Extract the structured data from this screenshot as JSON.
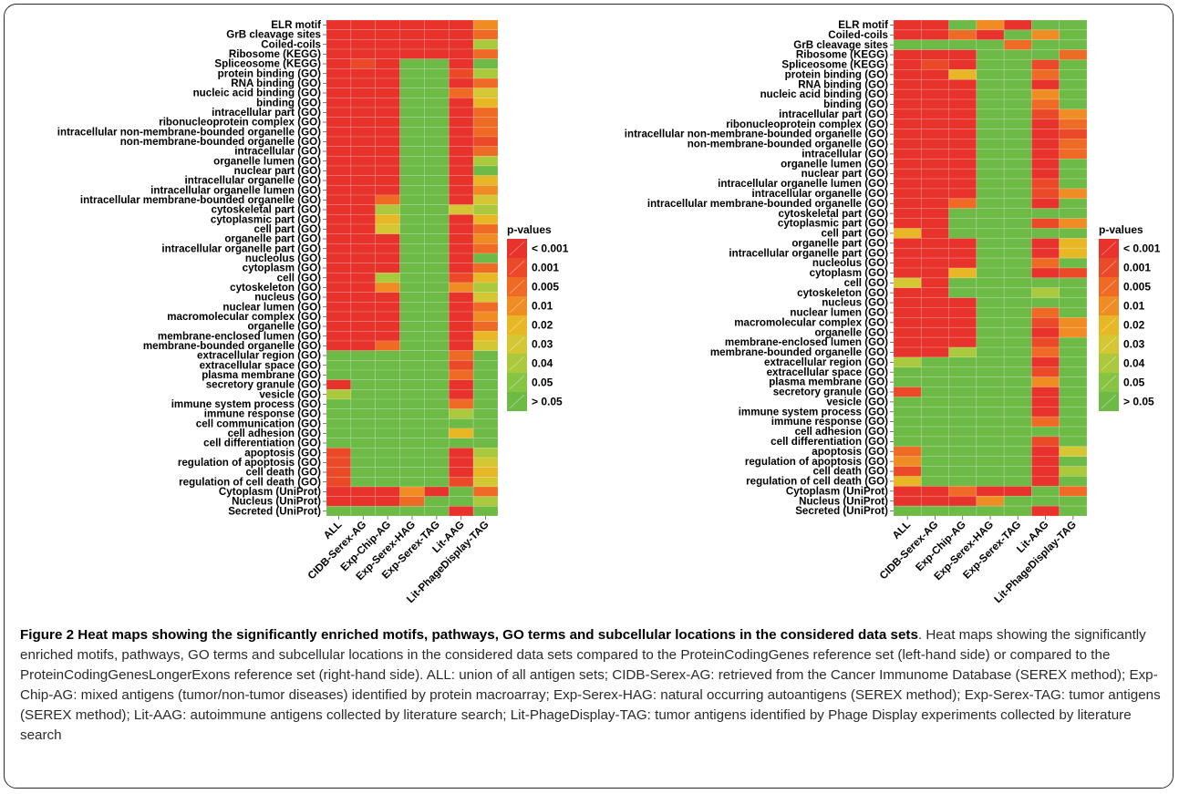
{
  "caption": {
    "heading": "Figure 2 Heat maps showing the significantly enriched motifs, pathways, GO terms and subcellular locations in the considered data sets",
    "body": ". Heat maps showing the significantly enriched motifs, pathways, GO terms and subcellular locations in the considered data sets compared to the ProteinCodingGenes reference set (left-hand side) or compared to the ProteinCodingGenesLongerExons reference set (right-hand side). ALL: union of all antigen sets; CIDB-Serex-AG: retrieved from the Cancer Immunome Database (SEREX method); Exp-Chip-AG: mixed antigens (tumor/non-tumor diseases) identified by protein macroarray; Exp-Serex-HAG: natural occurring autoantigens (SEREX method); Exp-Serex-TAG: tumor antigens (SEREX method); Lit-AAG: autoimmune antigens collected by literature search; Lit-PhageDisplay-TAG: tumor antigens identified by Phage Display experiments collected by literature search"
  },
  "legend_colors": [
    "#e8322c",
    "#eb4a29",
    "#ef6a25",
    "#f08c24",
    "#e8b726",
    "#d4c733",
    "#abc93c",
    "#88c444",
    "#6eba47"
  ],
  "chart_data": [
    {
      "type": "heatmap",
      "title": "",
      "columns": [
        "ALL",
        "CIDB-Serex-AG",
        "Exp-Chip-AG",
        "Exp-Serex-HAG",
        "Exp-Serex-TAG",
        "Lit-AAG",
        "Lit-PhageDisplay-TAG"
      ],
      "rows": [
        "ELR motif",
        "GrB cleavage sites",
        "Coiled-coils",
        "Ribosome (KEGG)",
        "Spliceosome (KEGG)",
        "protein binding (GO)",
        "RNA binding (GO)",
        "nucleic acid binding (GO)",
        "binding (GO)",
        "intracellular part (GO)",
        "ribonucleoprotein complex (GO)",
        "intracellular non-membrane-bounded organelle (GO)",
        "non-membrane-bounded organelle (GO)",
        "intracellular (GO)",
        "organelle lumen (GO)",
        "nuclear part (GO)",
        "intracellular organelle (GO)",
        "intracellular organelle lumen (GO)",
        "intracellular membrane-bounded organelle (GO)",
        "cytoskeletal part (GO)",
        "cytoplasmic part (GO)",
        "cell part (GO)",
        "organelle part (GO)",
        "intracellular organelle part (GO)",
        "nucleolus (GO)",
        "cytoplasm (GO)",
        "cell (GO)",
        "cytoskeleton (GO)",
        "nucleus (GO)",
        "nuclear lumen (GO)",
        "macromolecular complex (GO)",
        "organelle (GO)",
        "membrane-enclosed lumen (GO)",
        "membrane-bounded organelle (GO)",
        "extracellular region (GO)",
        "extracellular space (GO)",
        "plasma membrane (GO)",
        "secretory granule (GO)",
        "vesicle (GO)",
        "immune system process (GO)",
        "immune response (GO)",
        "cell communication (GO)",
        "cell adhesion (GO)",
        "cell differentiation (GO)",
        "apoptosis (GO)",
        "regulation of apoptosis (GO)",
        "cell death (GO)",
        "regulation of cell death (GO)",
        "Cytoplasm (UniProt)",
        "Nucleus (UniProt)",
        "Secreted (UniProt)"
      ],
      "levels": [
        "< 0.001",
        "0.001",
        "0.005",
        "0.01",
        "0.02",
        "0.03",
        "0.04",
        "0.05",
        "> 0.05"
      ],
      "values": [
        [
          0,
          0,
          0,
          0,
          0,
          0,
          3
        ],
        [
          0,
          0,
          0,
          0,
          0,
          0,
          2
        ],
        [
          0,
          0,
          0,
          0,
          0,
          0,
          6
        ],
        [
          0,
          0,
          0,
          0,
          0,
          0,
          2
        ],
        [
          0,
          1,
          0,
          8,
          8,
          0,
          8
        ],
        [
          0,
          0,
          0,
          8,
          8,
          1,
          6
        ],
        [
          0,
          0,
          0,
          8,
          8,
          0,
          2
        ],
        [
          0,
          0,
          0,
          8,
          8,
          2,
          5
        ],
        [
          0,
          0,
          0,
          8,
          8,
          0,
          4
        ],
        [
          0,
          0,
          0,
          8,
          8,
          0,
          2
        ],
        [
          0,
          0,
          0,
          8,
          8,
          0,
          2
        ],
        [
          0,
          0,
          0,
          8,
          8,
          0,
          2
        ],
        [
          0,
          0,
          0,
          8,
          8,
          0,
          1
        ],
        [
          0,
          0,
          0,
          8,
          8,
          0,
          2
        ],
        [
          0,
          0,
          0,
          8,
          8,
          0,
          6
        ],
        [
          0,
          0,
          0,
          8,
          8,
          0,
          8
        ],
        [
          0,
          0,
          0,
          8,
          8,
          0,
          4
        ],
        [
          0,
          0,
          0,
          8,
          8,
          0,
          3
        ],
        [
          0,
          0,
          2,
          8,
          8,
          0,
          5
        ],
        [
          0,
          0,
          6,
          8,
          8,
          5,
          6
        ],
        [
          0,
          0,
          4,
          8,
          8,
          0,
          4
        ],
        [
          0,
          0,
          5,
          8,
          8,
          0,
          2
        ],
        [
          0,
          0,
          0,
          8,
          8,
          0,
          3
        ],
        [
          0,
          0,
          0,
          8,
          8,
          0,
          2
        ],
        [
          0,
          0,
          0,
          8,
          8,
          0,
          8
        ],
        [
          0,
          0,
          0,
          8,
          8,
          0,
          2
        ],
        [
          0,
          0,
          6,
          8,
          8,
          1,
          4
        ],
        [
          0,
          0,
          3,
          8,
          8,
          3,
          6
        ],
        [
          0,
          0,
          0,
          8,
          8,
          0,
          5
        ],
        [
          0,
          0,
          0,
          8,
          8,
          0,
          2
        ],
        [
          0,
          0,
          0,
          8,
          8,
          0,
          3
        ],
        [
          0,
          0,
          0,
          8,
          8,
          0,
          2
        ],
        [
          0,
          0,
          0,
          8,
          8,
          0,
          4
        ],
        [
          0,
          0,
          2,
          8,
          8,
          0,
          5
        ],
        [
          8,
          8,
          8,
          8,
          8,
          2,
          8
        ],
        [
          8,
          8,
          8,
          8,
          8,
          1,
          8
        ],
        [
          8,
          8,
          8,
          8,
          8,
          2,
          8
        ],
        [
          0,
          8,
          8,
          8,
          8,
          0,
          8
        ],
        [
          6,
          8,
          8,
          8,
          8,
          0,
          8
        ],
        [
          8,
          8,
          8,
          8,
          8,
          2,
          8
        ],
        [
          8,
          8,
          8,
          8,
          8,
          6,
          8
        ],
        [
          8,
          8,
          8,
          8,
          8,
          8,
          8
        ],
        [
          8,
          8,
          8,
          8,
          8,
          4,
          8
        ],
        [
          8,
          8,
          8,
          8,
          8,
          8,
          8
        ],
        [
          1,
          8,
          8,
          8,
          8,
          0,
          6
        ],
        [
          1,
          8,
          8,
          8,
          8,
          0,
          5
        ],
        [
          1,
          8,
          8,
          8,
          8,
          0,
          4
        ],
        [
          1,
          8,
          8,
          8,
          8,
          1,
          5
        ],
        [
          0,
          0,
          0,
          3,
          0,
          8,
          2
        ],
        [
          0,
          0,
          0,
          2,
          8,
          8,
          6
        ],
        [
          8,
          8,
          8,
          8,
          8,
          0,
          8
        ]
      ]
    },
    {
      "type": "heatmap",
      "title": "",
      "columns": [
        "ALL",
        "CIDB-Serex-AG",
        "Exp-Chip-AG",
        "Exp-Serex-HAG",
        "Exp-Serex-TAG",
        "Lit-AAG",
        "Lit-PhageDisplay-TAG"
      ],
      "rows": [
        "ELR motif",
        "Coiled-coils",
        "GrB cleavage sites",
        "Ribosome (KEGG)",
        "Spliceosome (KEGG)",
        "protein binding (GO)",
        "RNA binding (GO)",
        "nucleic acid binding (GO)",
        "binding (GO)",
        "intracellular part (GO)",
        "ribonucleoprotein complex (GO)",
        "intracellular non-membrane-bounded organelle (GO)",
        "non-membrane-bounded organelle (GO)",
        "intracellular (GO)",
        "organelle lumen (GO)",
        "nuclear part (GO)",
        "intracellular organelle lumen (GO)",
        "intracellular organelle (GO)",
        "intracellular membrane-bounded organelle (GO)",
        "cytoskeletal part (GO)",
        "cytoplasmic part (GO)",
        "cell part (GO)",
        "organelle part (GO)",
        "intracellular organelle part (GO)",
        "nucleolus (GO)",
        "cytoplasm (GO)",
        "cell (GO)",
        "cytoskeleton (GO)",
        "nucleus (GO)",
        "nuclear lumen (GO)",
        "macromolecular complex (GO)",
        "organelle (GO)",
        "membrane-enclosed lumen (GO)",
        "membrane-bounded organelle (GO)",
        "extracellular region (GO)",
        "extracellular space (GO)",
        "plasma membrane (GO)",
        "secretory granule (GO)",
        "vesicle (GO)",
        "immune system process (GO)",
        "immune response (GO)",
        "cell adhesion (GO)",
        "cell differentiation (GO)",
        "apoptosis (GO)",
        "regulation of apoptosis (GO)",
        "cell death (GO)",
        "regulation of cell death (GO)",
        "Cytoplasm (UniProt)",
        "Nucleus (UniProt)",
        "Secreted (UniProt)"
      ],
      "levels": [
        "< 0.001",
        "0.001",
        "0.005",
        "0.01",
        "0.02",
        "0.03",
        "0.04",
        "0.05",
        "> 0.05"
      ],
      "values": [
        [
          0,
          0,
          8,
          3,
          0,
          8,
          8
        ],
        [
          0,
          0,
          2,
          0,
          8,
          3,
          8
        ],
        [
          8,
          8,
          8,
          8,
          2,
          8,
          8
        ],
        [
          0,
          0,
          0,
          8,
          8,
          8,
          2
        ],
        [
          0,
          1,
          0,
          8,
          8,
          1,
          8
        ],
        [
          0,
          0,
          4,
          8,
          8,
          2,
          8
        ],
        [
          0,
          0,
          0,
          8,
          8,
          0,
          8
        ],
        [
          0,
          0,
          0,
          8,
          8,
          3,
          8
        ],
        [
          0,
          0,
          0,
          8,
          8,
          2,
          8
        ],
        [
          0,
          0,
          0,
          8,
          8,
          1,
          3
        ],
        [
          0,
          0,
          0,
          8,
          8,
          0,
          2
        ],
        [
          0,
          0,
          0,
          8,
          8,
          0,
          1
        ],
        [
          0,
          0,
          0,
          8,
          8,
          0,
          2
        ],
        [
          0,
          0,
          0,
          8,
          8,
          0,
          2
        ],
        [
          0,
          0,
          0,
          8,
          8,
          0,
          8
        ],
        [
          0,
          0,
          0,
          8,
          8,
          0,
          8
        ],
        [
          0,
          0,
          0,
          8,
          8,
          1,
          8
        ],
        [
          0,
          0,
          0,
          8,
          8,
          1,
          3
        ],
        [
          0,
          0,
          2,
          8,
          8,
          0,
          8
        ],
        [
          0,
          0,
          8,
          8,
          8,
          8,
          8
        ],
        [
          0,
          0,
          8,
          8,
          8,
          1,
          3
        ],
        [
          4,
          0,
          8,
          8,
          8,
          8,
          8
        ],
        [
          0,
          0,
          0,
          8,
          8,
          0,
          4
        ],
        [
          0,
          0,
          0,
          8,
          8,
          0,
          4
        ],
        [
          0,
          0,
          0,
          8,
          8,
          2,
          8
        ],
        [
          0,
          0,
          4,
          8,
          8,
          0,
          1
        ],
        [
          5,
          0,
          8,
          8,
          8,
          8,
          8
        ],
        [
          0,
          0,
          8,
          8,
          8,
          6,
          8
        ],
        [
          0,
          0,
          0,
          8,
          8,
          8,
          8
        ],
        [
          0,
          0,
          0,
          8,
          8,
          2,
          8
        ],
        [
          0,
          0,
          0,
          8,
          8,
          1,
          3
        ],
        [
          0,
          0,
          0,
          8,
          8,
          0,
          3
        ],
        [
          0,
          0,
          0,
          8,
          8,
          1,
          8
        ],
        [
          0,
          0,
          6,
          8,
          8,
          2,
          8
        ],
        [
          6,
          8,
          8,
          8,
          8,
          0,
          8
        ],
        [
          8,
          8,
          8,
          8,
          8,
          1,
          8
        ],
        [
          8,
          8,
          8,
          8,
          8,
          3,
          8
        ],
        [
          1,
          8,
          8,
          8,
          8,
          0,
          8
        ],
        [
          8,
          8,
          8,
          8,
          8,
          0,
          8
        ],
        [
          8,
          8,
          8,
          8,
          8,
          0,
          8
        ],
        [
          8,
          8,
          8,
          8,
          8,
          2,
          8
        ],
        [
          8,
          8,
          8,
          8,
          8,
          8,
          8
        ],
        [
          8,
          8,
          8,
          8,
          8,
          1,
          8
        ],
        [
          2,
          8,
          8,
          8,
          8,
          0,
          5
        ],
        [
          3,
          8,
          8,
          8,
          8,
          0,
          8
        ],
        [
          1,
          8,
          8,
          8,
          8,
          0,
          6
        ],
        [
          4,
          8,
          8,
          8,
          8,
          0,
          8
        ],
        [
          0,
          0,
          2,
          0,
          0,
          8,
          2
        ],
        [
          0,
          0,
          0,
          3,
          8,
          8,
          8
        ],
        [
          8,
          8,
          8,
          8,
          8,
          0,
          8
        ]
      ]
    }
  ]
}
